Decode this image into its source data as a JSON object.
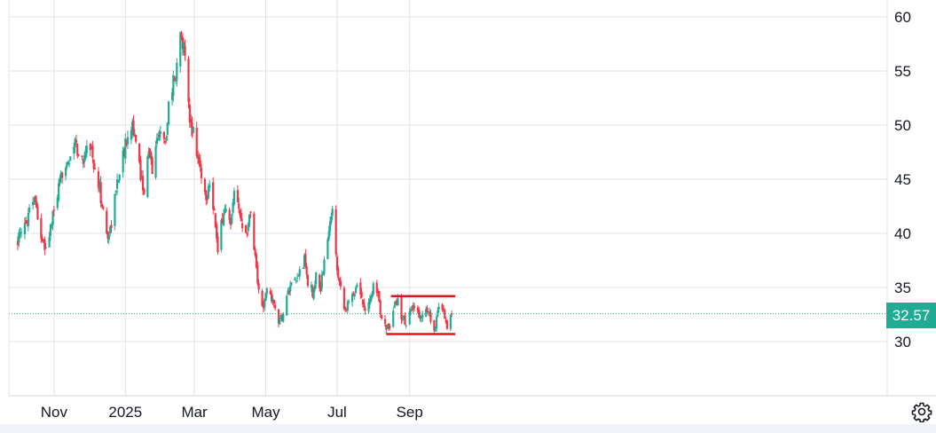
{
  "chart_data": {
    "type": "candlestick",
    "x_ticks": [
      "Nov",
      "2025",
      "Mar",
      "May",
      "Jul",
      "Sep"
    ],
    "y_ticks": [
      30,
      35,
      40,
      45,
      50,
      55,
      60
    ],
    "ylim": [
      24.5,
      61
    ],
    "grid": true,
    "last_price": 32.57,
    "last_price_label": "32.57",
    "colors": {
      "up": "#22ab94",
      "down": "#f23645",
      "trendline": "#e0141e",
      "grid": "#e0e3eb",
      "price_line": "#22ab94"
    },
    "support_line": {
      "start": "2025-08-12",
      "end": "2025-10-10",
      "value": 30.7
    },
    "resistance_line": {
      "start": "2025-08-16",
      "end": "2025-10-10",
      "value": 34.2
    },
    "close_series": [
      [
        "2024-10-01",
        39.5
      ],
      [
        "2024-10-04",
        39.8
      ],
      [
        "2024-10-08",
        41.0
      ],
      [
        "2024-10-11",
        42.5
      ],
      [
        "2024-10-15",
        43.5
      ],
      [
        "2024-10-18",
        41.8
      ],
      [
        "2024-10-22",
        39.0
      ],
      [
        "2024-10-25",
        38.5
      ],
      [
        "2024-10-29",
        40.5
      ],
      [
        "2024-11-01",
        42.0
      ],
      [
        "2024-11-05",
        44.0
      ],
      [
        "2024-11-08",
        45.5
      ],
      [
        "2024-11-12",
        47.0
      ],
      [
        "2024-11-15",
        46.5
      ],
      [
        "2024-11-19",
        48.5
      ],
      [
        "2024-11-22",
        47.0
      ],
      [
        "2024-11-26",
        46.8
      ],
      [
        "2024-11-29",
        48.5
      ],
      [
        "2024-12-03",
        47.8
      ],
      [
        "2024-12-06",
        45.5
      ],
      [
        "2024-12-10",
        44.0
      ],
      [
        "2024-12-13",
        42.0
      ],
      [
        "2024-12-17",
        39.5
      ],
      [
        "2024-12-20",
        41.0
      ],
      [
        "2024-12-24",
        44.0
      ],
      [
        "2024-12-27",
        46.0
      ],
      [
        "2024-12-31",
        47.5
      ],
      [
        "2025-01-03",
        49.5
      ],
      [
        "2025-01-07",
        50.3
      ],
      [
        "2025-01-10",
        48.0
      ],
      [
        "2025-01-14",
        45.5
      ],
      [
        "2025-01-17",
        44.0
      ],
      [
        "2025-01-21",
        47.5
      ],
      [
        "2025-01-24",
        46.0
      ],
      [
        "2025-01-28",
        48.5
      ],
      [
        "2025-01-31",
        49.8
      ],
      [
        "2025-02-04",
        48.0
      ],
      [
        "2025-02-07",
        52.0
      ],
      [
        "2025-02-11",
        54.0
      ],
      [
        "2025-02-14",
        55.5
      ],
      [
        "2025-02-18",
        58.8
      ],
      [
        "2025-02-21",
        56.0
      ],
      [
        "2025-02-25",
        50.0
      ],
      [
        "2025-02-28",
        49.5
      ],
      [
        "2025-03-04",
        47.0
      ],
      [
        "2025-03-07",
        45.5
      ],
      [
        "2025-03-11",
        43.0
      ],
      [
        "2025-03-14",
        45.0
      ],
      [
        "2025-03-18",
        42.0
      ],
      [
        "2025-03-21",
        38.0
      ],
      [
        "2025-03-25",
        41.5
      ],
      [
        "2025-03-28",
        42.5
      ],
      [
        "2025-04-01",
        40.5
      ],
      [
        "2025-04-04",
        43.5
      ],
      [
        "2025-04-08",
        42.0
      ],
      [
        "2025-04-11",
        41.0
      ],
      [
        "2025-04-15",
        40.5
      ],
      [
        "2025-04-18",
        42.0
      ],
      [
        "2025-04-22",
        38.0
      ],
      [
        "2025-04-25",
        34.5
      ],
      [
        "2025-04-29",
        33.0
      ],
      [
        "2025-05-02",
        35.0
      ],
      [
        "2025-05-06",
        34.0
      ],
      [
        "2025-05-09",
        33.0
      ],
      [
        "2025-05-13",
        31.8
      ],
      [
        "2025-05-16",
        32.5
      ],
      [
        "2025-05-20",
        34.5
      ],
      [
        "2025-05-23",
        35.0
      ],
      [
        "2025-05-27",
        35.5
      ],
      [
        "2025-05-30",
        36.5
      ],
      [
        "2025-06-03",
        37.5
      ],
      [
        "2025-06-06",
        35.5
      ],
      [
        "2025-06-10",
        34.5
      ],
      [
        "2025-06-13",
        36.0
      ],
      [
        "2025-06-17",
        35.0
      ],
      [
        "2025-06-20",
        37.5
      ],
      [
        "2025-06-24",
        40.0
      ],
      [
        "2025-06-27",
        42.5
      ],
      [
        "2025-07-01",
        37.0
      ],
      [
        "2025-07-04",
        35.0
      ],
      [
        "2025-07-08",
        33.0
      ],
      [
        "2025-07-11",
        33.5
      ],
      [
        "2025-07-15",
        34.5
      ],
      [
        "2025-07-18",
        35.5
      ],
      [
        "2025-07-22",
        34.0
      ],
      [
        "2025-07-25",
        33.2
      ],
      [
        "2025-07-29",
        33.8
      ],
      [
        "2025-08-01",
        35.2
      ],
      [
        "2025-08-05",
        34.0
      ],
      [
        "2025-08-08",
        32.5
      ],
      [
        "2025-08-12",
        31.5
      ],
      [
        "2025-08-15",
        30.8
      ],
      [
        "2025-08-19",
        33.2
      ],
      [
        "2025-08-22",
        33.8
      ],
      [
        "2025-08-26",
        32.0
      ],
      [
        "2025-08-29",
        31.8
      ],
      [
        "2025-09-02",
        32.8
      ],
      [
        "2025-09-05",
        33.0
      ],
      [
        "2025-09-09",
        32.2
      ],
      [
        "2025-09-12",
        32.5
      ],
      [
        "2025-09-16",
        33.0
      ],
      [
        "2025-09-19",
        32.2
      ],
      [
        "2025-09-23",
        31.2
      ],
      [
        "2025-09-26",
        33.5
      ],
      [
        "2025-09-30",
        32.8
      ],
      [
        "2025-10-03",
        31.5
      ],
      [
        "2025-10-07",
        32.57
      ]
    ]
  }
}
